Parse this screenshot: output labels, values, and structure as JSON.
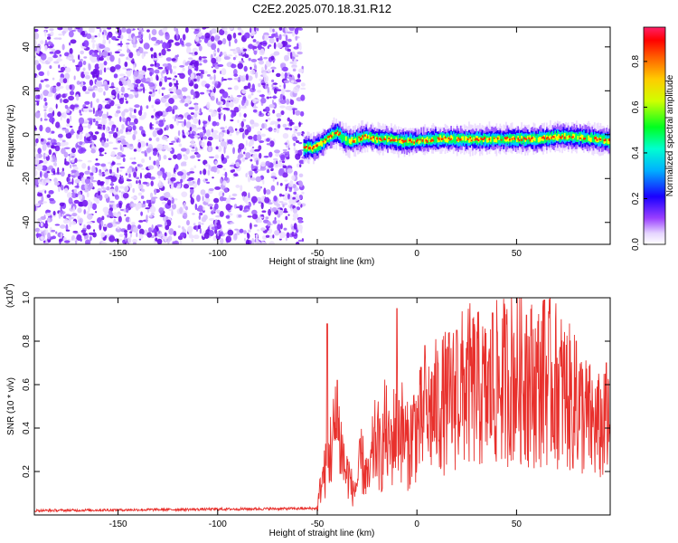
{
  "title": "C2E2.2025.070.18.31.R12",
  "colors": {
    "snr_line": "#e8302c",
    "axis": "#000000",
    "noise_purple": "#7a1ff0",
    "colormap": [
      "#ffffff",
      "#f0e8ff",
      "#b060ff",
      "#2000ff",
      "#00d0ff",
      "#00ff40",
      "#ffff00",
      "#ff8000",
      "#ff0000",
      "#ff2060"
    ]
  },
  "chart_data": [
    {
      "type": "heatmap",
      "title": "C2E2.2025.070.18.31.R12",
      "xlabel": "Height of straight line (km)",
      "ylabel": "Frequency (Hz)",
      "xlim": [
        -192,
        97
      ],
      "ylim": [
        -50,
        49
      ],
      "x_ticks": [
        -150,
        -100,
        -50,
        0,
        50
      ],
      "x_tick_labels": [
        "-150",
        "-100",
        "-50",
        "0",
        "50"
      ],
      "y_ticks": [
        -40,
        -20,
        0,
        20,
        40
      ],
      "y_tick_labels": [
        "-40",
        "-20",
        "0",
        "20",
        "40"
      ],
      "colorbar": {
        "label": "Normalized spectral amplitude",
        "range": [
          0,
          0.95
        ],
        "ticks": [
          0.0,
          0.2,
          0.4,
          0.6,
          0.8
        ],
        "tick_labels": [
          "0.0",
          "0.2",
          "0.4",
          "0.6",
          "0.8"
        ]
      },
      "noise_region_x": [
        -192,
        -57
      ],
      "ridge": {
        "x": [
          -57,
          -52,
          -48,
          -44,
          -40,
          -37,
          -34,
          -30,
          -26,
          -20,
          -14,
          -8,
          0,
          10,
          20,
          30,
          40,
          50,
          60,
          70,
          80,
          90,
          97
        ],
        "frequency": [
          -6,
          -6,
          -4,
          -1,
          1,
          -2,
          -3,
          -2,
          -1,
          -2,
          -2,
          -3,
          -3,
          -2,
          -2,
          -2,
          -2,
          -2,
          -2,
          -1,
          -1,
          -2,
          -3
        ]
      }
    },
    {
      "type": "line",
      "xlabel": "Height of straight line (km)",
      "ylabel": "SNR (10 * v/v)",
      "y_multiplier_label": "(x10",
      "y_multiplier_exp": "4",
      "xlim": [
        -192,
        97
      ],
      "ylim": [
        0,
        1.0
      ],
      "x_ticks": [
        -150,
        -100,
        -50,
        0,
        50
      ],
      "x_tick_labels": [
        "-150",
        "-100",
        "-50",
        "0",
        "50"
      ],
      "y_ticks": [
        0.2,
        0.4,
        0.6,
        0.8,
        1.0
      ],
      "y_tick_labels": [
        "0.2",
        "0.4",
        "0.6",
        "0.8",
        "1.0"
      ],
      "series": [
        {
          "x": [
            -192,
            -50,
            -48,
            -46,
            -44,
            -42,
            -40,
            -38,
            -36,
            -34,
            -32,
            -30,
            -28,
            -26,
            -24,
            -22,
            -20,
            -18,
            -16,
            -14,
            -12,
            -10,
            -8,
            -6,
            -4,
            -2,
            0,
            5,
            10,
            15,
            20,
            25,
            30,
            35,
            40,
            45,
            50,
            55,
            60,
            65,
            70,
            75,
            80,
            85,
            90,
            97
          ],
          "y": [
            0.02,
            0.03,
            0.15,
            0.2,
            0.28,
            0.35,
            0.4,
            0.32,
            0.2,
            0.18,
            0.1,
            0.15,
            0.25,
            0.2,
            0.15,
            0.3,
            0.35,
            0.25,
            0.4,
            0.3,
            0.35,
            0.45,
            0.4,
            0.35,
            0.3,
            0.4,
            0.4,
            0.45,
            0.5,
            0.52,
            0.55,
            0.6,
            0.58,
            0.55,
            0.6,
            0.62,
            0.65,
            0.62,
            0.6,
            0.62,
            0.6,
            0.55,
            0.5,
            0.45,
            0.4,
            0.4
          ],
          "spikes": [
            {
              "x": -45,
              "y": 0.88
            },
            {
              "x": -40,
              "y": 0.62
            },
            {
              "x": -10,
              "y": 0.95
            },
            {
              "x": 4,
              "y": 0.78
            },
            {
              "x": 20,
              "y": 0.85
            },
            {
              "x": 38,
              "y": 0.93
            },
            {
              "x": 55,
              "y": 0.92
            },
            {
              "x": 64,
              "y": 0.99
            },
            {
              "x": 80,
              "y": 0.8
            },
            {
              "x": 95,
              "y": 0.7
            }
          ]
        }
      ]
    }
  ]
}
